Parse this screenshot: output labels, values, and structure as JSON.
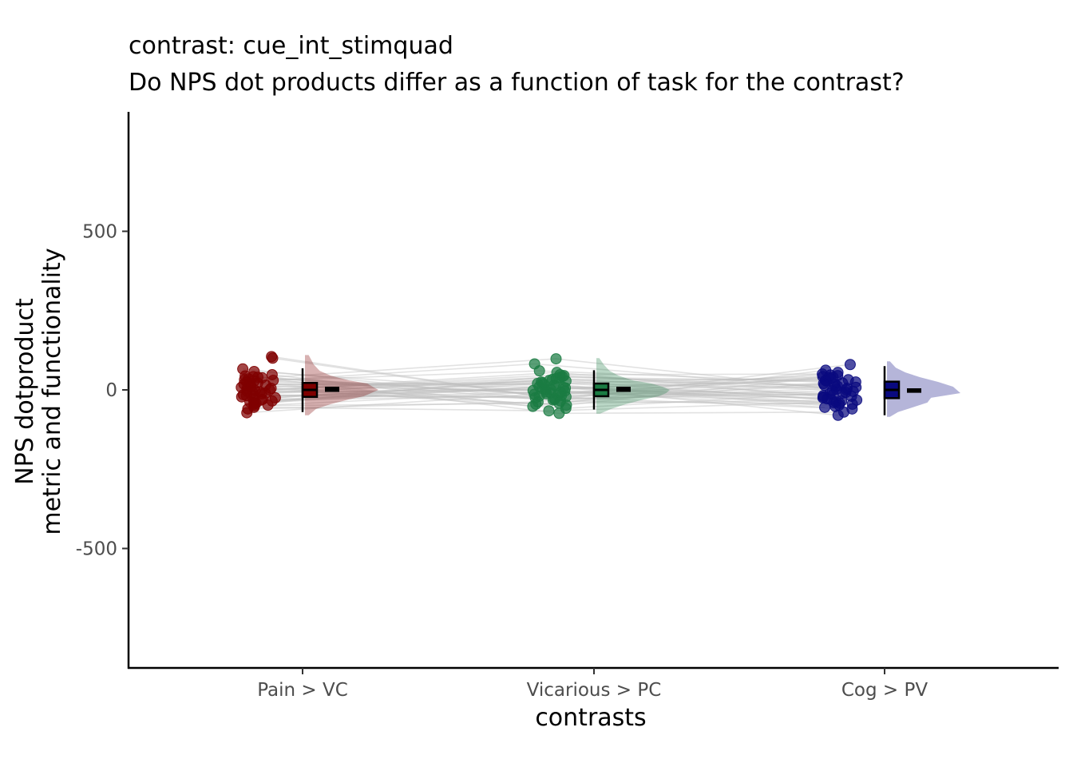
{
  "chart_data": {
    "type": "raincloud",
    "title": "contrast:  cue_int_stimquad",
    "subtitle": "Do NPS dot products differ as a function of task for the contrast?",
    "xlabel": "contrasts",
    "ylabel_lines": [
      "NPS dotproduct",
      "metric and functionality"
    ],
    "ylim": [
      -880,
      880
    ],
    "y_ticks": [
      500,
      0,
      -500
    ],
    "y_tick_labels": [
      "500",
      "0",
      "-500"
    ],
    "categories": [
      "Pain > VC",
      "Vicarious > PC",
      "Cog > PV"
    ],
    "grid": false,
    "legend": "none",
    "line_color": "#bfbfbf",
    "series": [
      {
        "category": "Pain > VC",
        "color": "#7f0000",
        "mean": 2,
        "se": 5,
        "box": {
          "q1": -22,
          "median": 0,
          "q3": 22,
          "whisker_low": -70,
          "whisker_high": 68
        },
        "density_ys": [
          -80,
          -60,
          -45,
          -30,
          -20,
          -10,
          0,
          10,
          20,
          30,
          45,
          60,
          80,
          110
        ],
        "density_w": [
          0.05,
          0.15,
          0.35,
          0.6,
          0.8,
          0.9,
          1.0,
          0.92,
          0.85,
          0.6,
          0.35,
          0.2,
          0.12,
          0.05
        ],
        "points": [
          105,
          100,
          66,
          58,
          48,
          44,
          42,
          40,
          38,
          35,
          32,
          30,
          28,
          25,
          22,
          20,
          18,
          15,
          12,
          10,
          8,
          5,
          3,
          0,
          -2,
          -4,
          -6,
          -8,
          -10,
          -12,
          -15,
          -18,
          -20,
          -22,
          -25,
          -28,
          -30,
          -32,
          -35,
          -38,
          -40,
          -42,
          -45,
          -48,
          -50,
          -55,
          -60,
          -72
        ]
      },
      {
        "category": "Vicarious > PC",
        "color": "#1b7c43",
        "mean": 2,
        "se": 5,
        "box": {
          "q1": -20,
          "median": 0,
          "q3": 20,
          "whisker_low": -62,
          "whisker_high": 62
        },
        "density_ys": [
          -75,
          -60,
          -45,
          -30,
          -20,
          -10,
          0,
          10,
          20,
          30,
          45,
          60,
          80,
          100
        ],
        "density_w": [
          0.05,
          0.2,
          0.4,
          0.65,
          0.85,
          0.95,
          1.0,
          0.9,
          0.75,
          0.5,
          0.3,
          0.18,
          0.1,
          0.04
        ],
        "points": [
          98,
          82,
          60,
          55,
          48,
          45,
          42,
          40,
          36,
          33,
          30,
          28,
          25,
          22,
          20,
          18,
          15,
          12,
          10,
          8,
          6,
          4,
          2,
          0,
          -2,
          -4,
          -6,
          -8,
          -10,
          -12,
          -14,
          -16,
          -18,
          -20,
          -22,
          -25,
          -28,
          -30,
          -32,
          -35,
          -38,
          -42,
          -45,
          -48,
          -52,
          -58,
          -66,
          -74
        ]
      },
      {
        "category": "Cog > PV",
        "color": "#0a0a80",
        "mean": -2,
        "se": 4,
        "box": {
          "q1": -26,
          "median": 0,
          "q3": 26,
          "whisker_low": -80,
          "whisker_high": 75
        },
        "density_ys": [
          -85,
          -70,
          -55,
          -40,
          -25,
          -10,
          0,
          10,
          25,
          40,
          55,
          70,
          90
        ],
        "density_w": [
          0.04,
          0.15,
          0.35,
          0.55,
          0.6,
          1.0,
          0.95,
          0.9,
          0.7,
          0.45,
          0.25,
          0.12,
          0.04
        ],
        "points": [
          80,
          62,
          55,
          50,
          47,
          45,
          42,
          40,
          38,
          35,
          32,
          30,
          28,
          25,
          22,
          20,
          18,
          15,
          12,
          10,
          8,
          5,
          2,
          0,
          -2,
          -5,
          -8,
          -10,
          -12,
          -15,
          -18,
          -20,
          -22,
          -25,
          -28,
          -30,
          -32,
          -35,
          -38,
          -40,
          -42,
          -45,
          -48,
          -52,
          -55,
          -60,
          -70,
          -80
        ]
      }
    ]
  }
}
